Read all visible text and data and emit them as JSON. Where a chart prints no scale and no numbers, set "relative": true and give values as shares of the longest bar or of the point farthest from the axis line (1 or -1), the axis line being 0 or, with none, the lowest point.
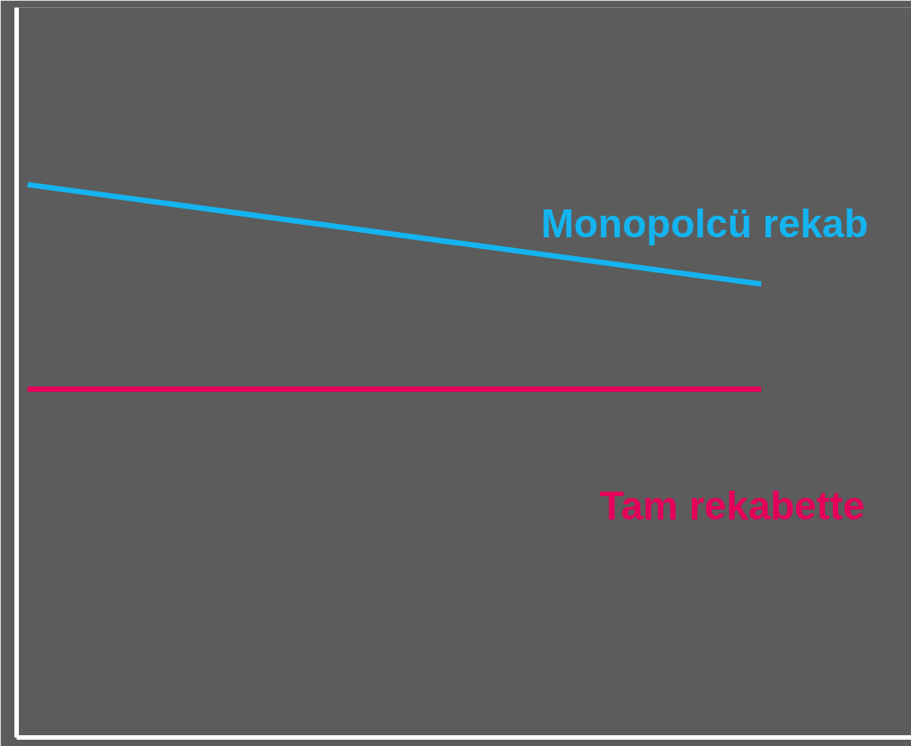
{
  "chart_data": {
    "type": "line",
    "relative": true,
    "categories": [
      null,
      null
    ],
    "series": [
      {
        "name": "Monopolcü rekab",
        "color": "#14b4f0",
        "values": [
          1,
          0.82
        ]
      },
      {
        "name": "Tam rekabette",
        "color": "#e4005a",
        "values": [
          0.63,
          0.63
        ]
      }
    ]
  }
}
